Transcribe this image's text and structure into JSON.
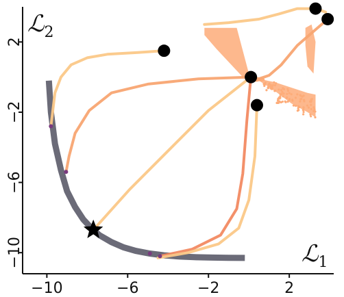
{
  "chart_data": {
    "type": "line",
    "xlabel": "ℒ",
    "xlabel_sub": "1",
    "ylabel": "ℒ",
    "ylabel_sub": "2",
    "xlim": [
      -11.2,
      4.2
    ],
    "ylim": [
      -11.2,
      4.0
    ],
    "x_ticks": [
      {
        "value": -10,
        "label": "−10"
      },
      {
        "value": -6,
        "label": "−6"
      },
      {
        "value": -2,
        "label": "−2"
      },
      {
        "value": 2,
        "label": "2"
      }
    ],
    "y_ticks": [
      {
        "value": 2,
        "label": "2"
      },
      {
        "value": -2,
        "label": "−2"
      },
      {
        "value": -6,
        "label": "−6"
      },
      {
        "value": -10,
        "label": "−10"
      }
    ],
    "grid": false,
    "colors": {
      "front": "#6b6b78",
      "light": "#fbc888",
      "mid": "#f8a572",
      "dark": "#f28a62",
      "scatter": "#fdac79",
      "endpoint": "#7a3a7f",
      "marker": "#000000"
    },
    "pareto_front": {
      "x": [
        -9.9,
        -9.8,
        -9.6,
        -9.3,
        -9.0,
        -8.6,
        -8.2,
        -7.8,
        -7.4,
        -6.8,
        -6.2,
        -5.6,
        -4.9,
        -4.2,
        -3.4,
        -2.6,
        -1.8,
        -1.0,
        -0.2
      ],
      "y": [
        -0.2,
        -2.0,
        -3.8,
        -5.3,
        -6.5,
        -7.4,
        -8.1,
        -8.6,
        -9.0,
        -9.4,
        -9.7,
        -9.9,
        -10.05,
        -10.15,
        -10.22,
        -10.26,
        -10.28,
        -10.29,
        -10.3
      ]
    },
    "star": {
      "x": -7.7,
      "y": -8.7
    },
    "series": [
      {
        "color": "light",
        "x": [
          -4.2,
          -5.5,
          -7.0,
          -8.0,
          -8.8,
          -9.3,
          -9.6,
          -9.8
        ],
        "y": [
          1.5,
          1.4,
          1.3,
          1.1,
          0.7,
          0.0,
          -0.9,
          -2.8
        ]
      },
      {
        "color": "mid",
        "x": [
          0.1,
          -2.5,
          -5.0,
          -6.8,
          -7.9,
          -8.6,
          -8.9,
          -9.05
        ],
        "y": [
          0.0,
          -0.1,
          -0.4,
          -0.9,
          -1.9,
          -3.2,
          -4.5,
          -5.4
        ]
      },
      {
        "color": "light",
        "x": [
          0.1,
          -2.0,
          -4.0,
          -5.9,
          -7.7
        ],
        "y": [
          0.0,
          -1.9,
          -4.2,
          -6.4,
          -8.7
        ]
      },
      {
        "color": "dark",
        "x": [
          0.1,
          -0.1,
          -0.3,
          -0.6,
          -1.4,
          -2.8,
          -4.4
        ],
        "y": [
          0.0,
          -2.5,
          -5.5,
          -7.5,
          -9.0,
          -9.8,
          -10.2
        ]
      },
      {
        "color": "light",
        "x": [
          0.4,
          0.3,
          0.0,
          -0.5,
          -1.5,
          -3.0,
          -4.0,
          -4.5
        ],
        "y": [
          -1.6,
          -4.5,
          -7.0,
          -8.6,
          -9.5,
          -10.0,
          -10.2,
          -10.3
        ]
      },
      {
        "color": "mid",
        "x": [
          0.1,
          0.5,
          1.0,
          1.6,
          2.4,
          3.2,
          3.7,
          3.8
        ],
        "y": [
          0.0,
          -0.1,
          0.1,
          0.7,
          1.8,
          2.6,
          3.1,
          3.2
        ]
      },
      {
        "color": "light",
        "x": [
          -2.2,
          -1.0,
          0.5,
          1.5,
          2.4,
          3.3,
          3.8
        ],
        "y": [
          3.0,
          3.1,
          3.3,
          3.6,
          3.9,
          3.9,
          3.7
        ]
      }
    ],
    "endpoints": [
      {
        "x": -9.8,
        "y": -2.8
      },
      {
        "x": -9.05,
        "y": -5.4
      },
      {
        "x": -4.4,
        "y": -10.2
      },
      {
        "x": -4.9,
        "y": -10.05
      }
    ],
    "start_points": [
      {
        "x": -4.2,
        "y": 1.5
      },
      {
        "x": 0.1,
        "y": 0.0
      },
      {
        "x": 0.4,
        "y": -1.6
      },
      {
        "x": 3.3,
        "y": 3.9
      },
      {
        "x": 3.9,
        "y": 3.3
      }
    ],
    "scatter_regions": [
      {
        "x": [
          -2.2,
          -0.6,
          0.0,
          -0.3,
          -1.6,
          -2.2
        ],
        "y": [
          2.8,
          2.8,
          0.2,
          0.0,
          1.6,
          2.4
        ]
      },
      {
        "x": 0.1,
        "y": 0.0,
        "spread": [
          0.4,
          1.2,
          2.0,
          2.8,
          3.2
        ],
        "low": [
          -0.2,
          -0.8,
          -1.5,
          -2.0,
          -2.3
        ],
        "high": [
          -0.1,
          -0.3,
          -0.6,
          -0.9,
          -1.0
        ]
      },
      {
        "x": [
          2.8,
          3.1,
          3.3,
          3.2,
          2.9,
          2.8
        ],
        "y": [
          2.8,
          3.0,
          2.0,
          0.2,
          0.6,
          1.8
        ]
      }
    ]
  }
}
